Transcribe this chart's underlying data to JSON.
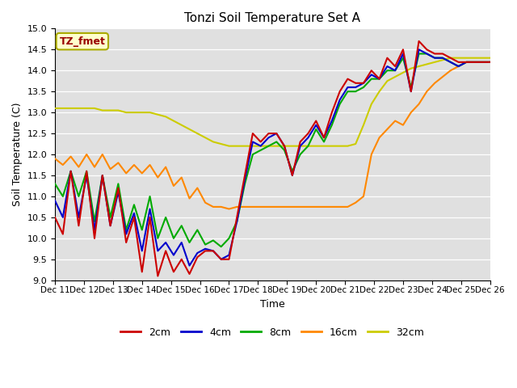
{
  "title": "Tonzi Soil Temperature Set A",
  "xlabel": "Time",
  "ylabel": "Soil Temperature (C)",
  "ylim": [
    9.0,
    15.0
  ],
  "yticks": [
    9.0,
    9.5,
    10.0,
    10.5,
    11.0,
    11.5,
    12.0,
    12.5,
    13.0,
    13.5,
    14.0,
    14.5,
    15.0
  ],
  "x_labels": [
    "Dec 11",
    "Dec 12",
    "Dec 13",
    "Dec 14",
    "Dec 15",
    "Dec 16",
    "Dec 17",
    "Dec 18",
    "Dec 19",
    "Dec 20",
    "Dec 21",
    "Dec 22",
    "Dec 23",
    "Dec 24",
    "Dec 25",
    "Dec 26"
  ],
  "annotation_text": "TZ_fmet",
  "annotation_bg": "#ffffcc",
  "annotation_border": "#aaaa00",
  "annotation_text_color": "#990000",
  "colors": {
    "2cm": "#cc0000",
    "4cm": "#0000cc",
    "8cm": "#00aa00",
    "16cm": "#ff8800",
    "32cm": "#cccc00"
  },
  "line_width": 1.5,
  "bg_color": "#e0e0e0",
  "n_points": 16,
  "data_2cm": [
    10.5,
    10.1,
    11.6,
    10.3,
    11.6,
    10.0,
    11.5,
    10.3,
    11.2,
    9.9,
    10.5,
    9.2,
    10.5,
    9.1,
    9.7,
    9.2,
    9.5,
    9.15,
    9.55,
    9.7,
    9.7,
    9.5,
    9.5,
    10.5,
    11.5,
    12.5,
    12.3,
    12.5,
    12.5,
    12.2,
    11.5,
    12.3,
    12.5,
    12.8,
    12.4,
    13.0,
    13.5,
    13.8,
    13.7,
    13.7,
    14.0,
    13.8,
    14.3,
    14.1,
    14.5,
    13.5,
    14.7,
    14.5,
    14.4,
    14.4,
    14.3,
    14.2,
    14.2,
    14.2,
    14.2,
    14.2
  ],
  "data_4cm": [
    10.9,
    10.5,
    11.6,
    10.5,
    11.5,
    10.2,
    11.5,
    10.3,
    11.1,
    10.1,
    10.6,
    9.7,
    10.7,
    9.7,
    9.9,
    9.6,
    9.9,
    9.35,
    9.65,
    9.75,
    9.7,
    9.5,
    9.6,
    10.4,
    11.4,
    12.3,
    12.2,
    12.4,
    12.5,
    12.2,
    11.5,
    12.2,
    12.4,
    12.7,
    12.4,
    12.8,
    13.3,
    13.6,
    13.6,
    13.7,
    13.9,
    13.8,
    14.1,
    14.0,
    14.4,
    13.5,
    14.5,
    14.4,
    14.3,
    14.3,
    14.2,
    14.1,
    14.2,
    14.2,
    14.2,
    14.2
  ],
  "data_8cm": [
    11.3,
    11.0,
    11.6,
    11.0,
    11.6,
    10.4,
    11.5,
    10.5,
    11.3,
    10.2,
    10.8,
    10.2,
    11.0,
    10.0,
    10.5,
    10.0,
    10.3,
    9.9,
    10.2,
    9.85,
    9.95,
    9.8,
    10.0,
    10.4,
    11.3,
    12.0,
    12.1,
    12.2,
    12.3,
    12.1,
    11.6,
    12.0,
    12.2,
    12.6,
    12.3,
    12.7,
    13.2,
    13.5,
    13.5,
    13.6,
    13.8,
    13.8,
    14.0,
    14.0,
    14.3,
    13.6,
    14.4,
    14.4,
    14.3,
    14.3,
    14.2,
    14.1,
    14.2,
    14.2,
    14.2,
    14.2
  ],
  "data_16cm": [
    11.9,
    11.75,
    11.95,
    11.7,
    12.0,
    11.7,
    12.0,
    11.65,
    11.8,
    11.55,
    11.75,
    11.55,
    11.75,
    11.45,
    11.7,
    11.25,
    11.45,
    10.95,
    11.2,
    10.85,
    10.75,
    10.75,
    10.7,
    10.75,
    10.75,
    10.75,
    10.75,
    10.75,
    10.75,
    10.75,
    10.75,
    10.75,
    10.75,
    10.75,
    10.75,
    10.75,
    10.75,
    10.75,
    10.85,
    11.0,
    12.0,
    12.4,
    12.6,
    12.8,
    12.7,
    13.0,
    13.2,
    13.5,
    13.7,
    13.85,
    14.0,
    14.1,
    14.2,
    14.2,
    14.2,
    14.2
  ],
  "data_32cm": [
    13.1,
    13.1,
    13.1,
    13.1,
    13.1,
    13.1,
    13.05,
    13.05,
    13.05,
    13.0,
    13.0,
    13.0,
    13.0,
    12.95,
    12.9,
    12.8,
    12.7,
    12.6,
    12.5,
    12.4,
    12.3,
    12.25,
    12.2,
    12.2,
    12.2,
    12.2,
    12.2,
    12.2,
    12.2,
    12.2,
    12.2,
    12.2,
    12.2,
    12.2,
    12.2,
    12.2,
    12.2,
    12.2,
    12.25,
    12.7,
    13.2,
    13.5,
    13.75,
    13.85,
    13.95,
    14.05,
    14.1,
    14.15,
    14.2,
    14.25,
    14.3,
    14.3,
    14.3,
    14.3,
    14.3,
    14.3
  ]
}
